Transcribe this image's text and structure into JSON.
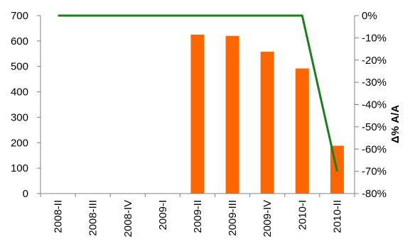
{
  "chart_data": {
    "type": "bar",
    "categories": [
      "2008-II",
      "2008-III",
      "2008-IV",
      "2009-I",
      "2009-II",
      "2009-III",
      "2009-IV",
      "2010-I",
      "2010-II"
    ],
    "series": [
      {
        "type": "bar",
        "axis": "left",
        "color": "#FF6600",
        "values": [
          0,
          0,
          0,
          0,
          625,
          620,
          558,
          492,
          188
        ]
      },
      {
        "type": "line",
        "axis": "right",
        "color": "#1B7F1B",
        "values": [
          0,
          0,
          0,
          0,
          0,
          0,
          0,
          0,
          -70
        ]
      }
    ],
    "y_left": {
      "min": 0,
      "max": 700,
      "step": 100,
      "tick_labels": [
        "0",
        "100",
        "200",
        "300",
        "400",
        "500",
        "600",
        "700"
      ]
    },
    "y_right": {
      "min": -80,
      "max": 0,
      "step": 10,
      "label": "Δ% A/A",
      "tick_labels": [
        "-80%",
        "-70%",
        "-60%",
        "-50%",
        "-40%",
        "-30%",
        "-20%",
        "-10%",
        "0%"
      ]
    },
    "grid": false,
    "legend": "none"
  }
}
